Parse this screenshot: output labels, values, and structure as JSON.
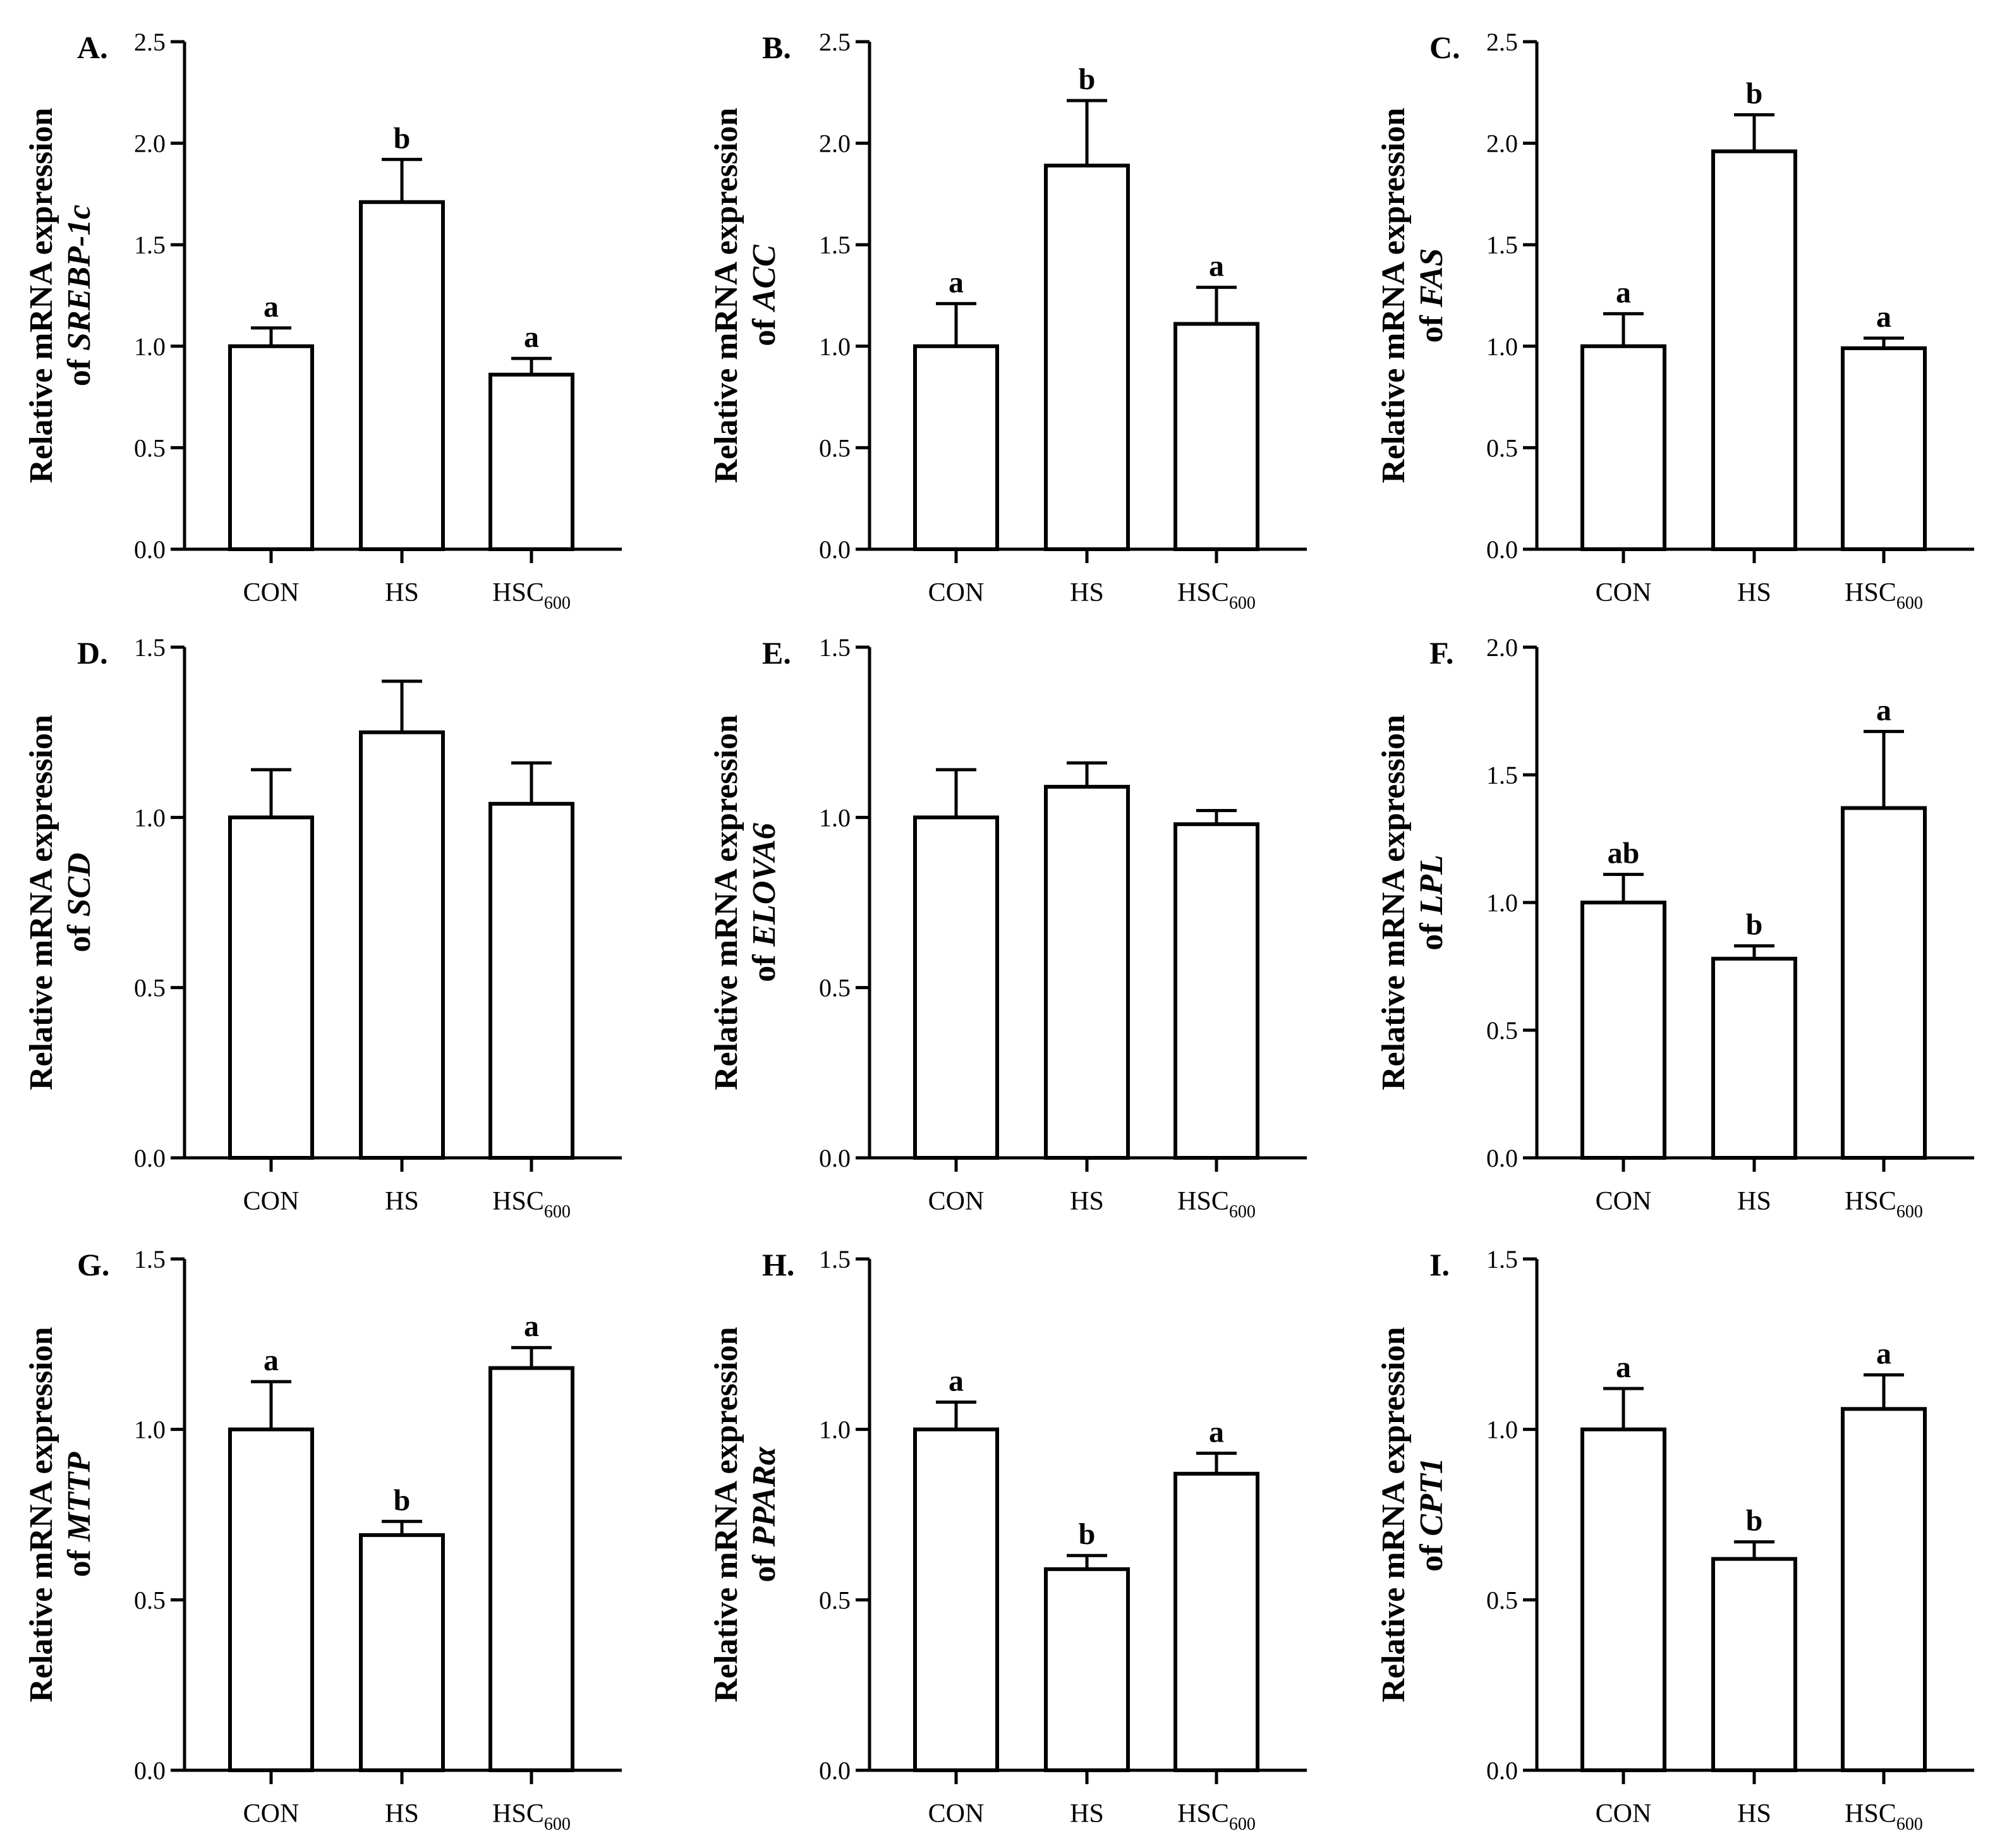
{
  "figure": {
    "style": {
      "stroke": "#000000",
      "fill": "#ffffff"
    }
  },
  "chart_data": [
    {
      "panel": "A.",
      "type": "bar",
      "ylabel_line1": "Relative mRNA expression",
      "ylabel_prefix": "of ",
      "gene": "SREBP-1c",
      "categories": [
        {
          "main": "CON",
          "sub": ""
        },
        {
          "main": "HS",
          "sub": ""
        },
        {
          "main": "HSC",
          "sub": "600"
        }
      ],
      "values": [
        1.0,
        1.71,
        0.86
      ],
      "errors": [
        0.09,
        0.21,
        0.08
      ],
      "letters": [
        "a",
        "b",
        "a"
      ],
      "ylim": [
        0,
        2.5
      ],
      "yticks": [
        "0.0",
        "0.5",
        "1.0",
        "1.5",
        "2.0",
        "2.5"
      ]
    },
    {
      "panel": "B.",
      "type": "bar",
      "ylabel_line1": "Relative mRNA expression",
      "ylabel_prefix": "of ",
      "gene": "ACC",
      "categories": [
        {
          "main": "CON",
          "sub": ""
        },
        {
          "main": "HS",
          "sub": ""
        },
        {
          "main": "HSC",
          "sub": "600"
        }
      ],
      "values": [
        1.0,
        1.89,
        1.11
      ],
      "errors": [
        0.21,
        0.32,
        0.18
      ],
      "letters": [
        "a",
        "b",
        "a"
      ],
      "ylim": [
        0,
        2.5
      ],
      "yticks": [
        "0.0",
        "0.5",
        "1.0",
        "1.5",
        "2.0",
        "2.5"
      ]
    },
    {
      "panel": "C.",
      "type": "bar",
      "ylabel_line1": "Relative mRNA expression",
      "ylabel_prefix": "of ",
      "gene": "FAS",
      "categories": [
        {
          "main": "CON",
          "sub": ""
        },
        {
          "main": "HS",
          "sub": ""
        },
        {
          "main": "HSC",
          "sub": "600"
        }
      ],
      "values": [
        1.0,
        1.96,
        0.99
      ],
      "errors": [
        0.16,
        0.18,
        0.05
      ],
      "letters": [
        "a",
        "b",
        "a"
      ],
      "ylim": [
        0,
        2.5
      ],
      "yticks": [
        "0.0",
        "0.5",
        "1.0",
        "1.5",
        "2.0",
        "2.5"
      ]
    },
    {
      "panel": "D.",
      "type": "bar",
      "ylabel_line1": "Relative mRNA expression",
      "ylabel_prefix": "of ",
      "gene": "SCD",
      "categories": [
        {
          "main": "CON",
          "sub": ""
        },
        {
          "main": "HS",
          "sub": ""
        },
        {
          "main": "HSC",
          "sub": "600"
        }
      ],
      "values": [
        1.0,
        1.25,
        1.04
      ],
      "errors": [
        0.14,
        0.15,
        0.12
      ],
      "letters": [
        "",
        "",
        ""
      ],
      "ylim": [
        0,
        1.5
      ],
      "yticks": [
        "0.0",
        "0.5",
        "1.0",
        "1.5"
      ]
    },
    {
      "panel": "E.",
      "type": "bar",
      "ylabel_line1": "Relative mRNA expression",
      "ylabel_prefix": "of ",
      "gene": "ELOVA6",
      "categories": [
        {
          "main": "CON",
          "sub": ""
        },
        {
          "main": "HS",
          "sub": ""
        },
        {
          "main": "HSC",
          "sub": "600"
        }
      ],
      "values": [
        1.0,
        1.09,
        0.98
      ],
      "errors": [
        0.14,
        0.07,
        0.04
      ],
      "letters": [
        "",
        "",
        ""
      ],
      "ylim": [
        0,
        1.5
      ],
      "yticks": [
        "0.0",
        "0.5",
        "1.0",
        "1.5"
      ]
    },
    {
      "panel": "F.",
      "type": "bar",
      "ylabel_line1": "Relative mRNA expression",
      "ylabel_prefix": "of ",
      "gene": "LPL",
      "categories": [
        {
          "main": "CON",
          "sub": ""
        },
        {
          "main": "HS",
          "sub": ""
        },
        {
          "main": "HSC",
          "sub": "600"
        }
      ],
      "values": [
        1.0,
        0.78,
        1.37
      ],
      "errors": [
        0.11,
        0.05,
        0.3
      ],
      "letters": [
        "ab",
        "b",
        "a"
      ],
      "ylim": [
        0,
        2.0
      ],
      "yticks": [
        "0.0",
        "0.5",
        "1.0",
        "1.5",
        "2.0"
      ]
    },
    {
      "panel": "G.",
      "type": "bar",
      "ylabel_line1": "Relative mRNA expression",
      "ylabel_prefix": "of ",
      "gene": "MTTP",
      "categories": [
        {
          "main": "CON",
          "sub": ""
        },
        {
          "main": "HS",
          "sub": ""
        },
        {
          "main": "HSC",
          "sub": "600"
        }
      ],
      "values": [
        1.0,
        0.69,
        1.18
      ],
      "errors": [
        0.14,
        0.04,
        0.06
      ],
      "letters": [
        "a",
        "b",
        "a"
      ],
      "ylim": [
        0,
        1.5
      ],
      "yticks": [
        "0.0",
        "0.5",
        "1.0",
        "1.5"
      ]
    },
    {
      "panel": "H.",
      "type": "bar",
      "ylabel_line1": "Relative mRNA expression",
      "ylabel_prefix": "of ",
      "gene": "PPARα",
      "categories": [
        {
          "main": "CON",
          "sub": ""
        },
        {
          "main": "HS",
          "sub": ""
        },
        {
          "main": "HSC",
          "sub": "600"
        }
      ],
      "values": [
        1.0,
        0.59,
        0.87
      ],
      "errors": [
        0.08,
        0.04,
        0.06
      ],
      "letters": [
        "a",
        "b",
        "a"
      ],
      "ylim": [
        0,
        1.5
      ],
      "yticks": [
        "0.0",
        "0.5",
        "1.0",
        "1.5"
      ]
    },
    {
      "panel": "I.",
      "type": "bar",
      "ylabel_line1": "Relative mRNA expression",
      "ylabel_prefix": "of ",
      "gene": "CPT1",
      "categories": [
        {
          "main": "CON",
          "sub": ""
        },
        {
          "main": "HS",
          "sub": ""
        },
        {
          "main": "HSC",
          "sub": "600"
        }
      ],
      "values": [
        1.0,
        0.62,
        1.06
      ],
      "errors": [
        0.12,
        0.05,
        0.1
      ],
      "letters": [
        "a",
        "b",
        "a"
      ],
      "ylim": [
        0,
        1.5
      ],
      "yticks": [
        "0.0",
        "0.5",
        "1.0",
        "1.5"
      ]
    }
  ]
}
